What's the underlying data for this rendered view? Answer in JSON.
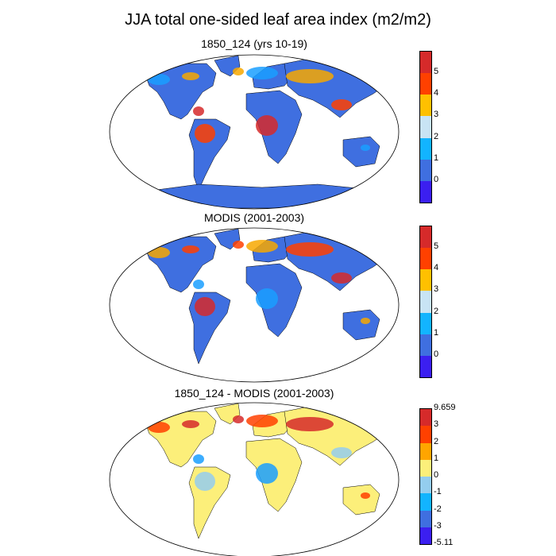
{
  "figure": {
    "title": "JJA total one-sided leaf area index (m2/m2)"
  },
  "panels": [
    {
      "title": "1850_124 (yrs 10-19)",
      "palette": {
        "ocean": "#ffffff",
        "land_base": "#3f6fe0",
        "low": "#1a9fff",
        "mid": "#f7a800",
        "high_1": "#ff4000",
        "high_2": "#d62a2a"
      },
      "colorbar": {
        "colors": [
          "#3b1ff0",
          "#3f6fe0",
          "#12b4ff",
          "#c8e4f4",
          "#ffc000",
          "#ff4000",
          "#d62a2a"
        ],
        "labels": [
          "0",
          "1",
          "2",
          "3",
          "4",
          "5"
        ]
      }
    },
    {
      "title": "MODIS (2001-2003)",
      "palette": {
        "ocean": "#ffffff",
        "land_base": "#3f6fe0",
        "low": "#1a9fff",
        "mid": "#f7a800",
        "high_1": "#ff4000",
        "high_2": "#d62a2a"
      },
      "colorbar": {
        "colors": [
          "#3b1ff0",
          "#3f6fe0",
          "#12b4ff",
          "#c8e4f4",
          "#ffc000",
          "#ff4000",
          "#d62a2a"
        ],
        "labels": [
          "0",
          "1",
          "2",
          "3",
          "4",
          "5"
        ]
      }
    },
    {
      "title": "1850_124 - MODIS (2001-2003)",
      "palette": {
        "ocean": "#ffffff",
        "land_base": "#fcef7a",
        "low": "#94cdef",
        "mid": "#1a9fff",
        "high_1": "#ff4000",
        "high_2": "#d62a2a"
      },
      "colorbar": {
        "colors": [
          "#3b1ff0",
          "#3f6fe0",
          "#12b4ff",
          "#94cdef",
          "#fcef7a",
          "#ffa500",
          "#ff4000",
          "#d62a2a"
        ],
        "labels": [
          "9.659",
          "3",
          "2",
          "1",
          "0",
          "-1",
          "-2",
          "-3",
          "-5.11"
        ]
      }
    }
  ]
}
